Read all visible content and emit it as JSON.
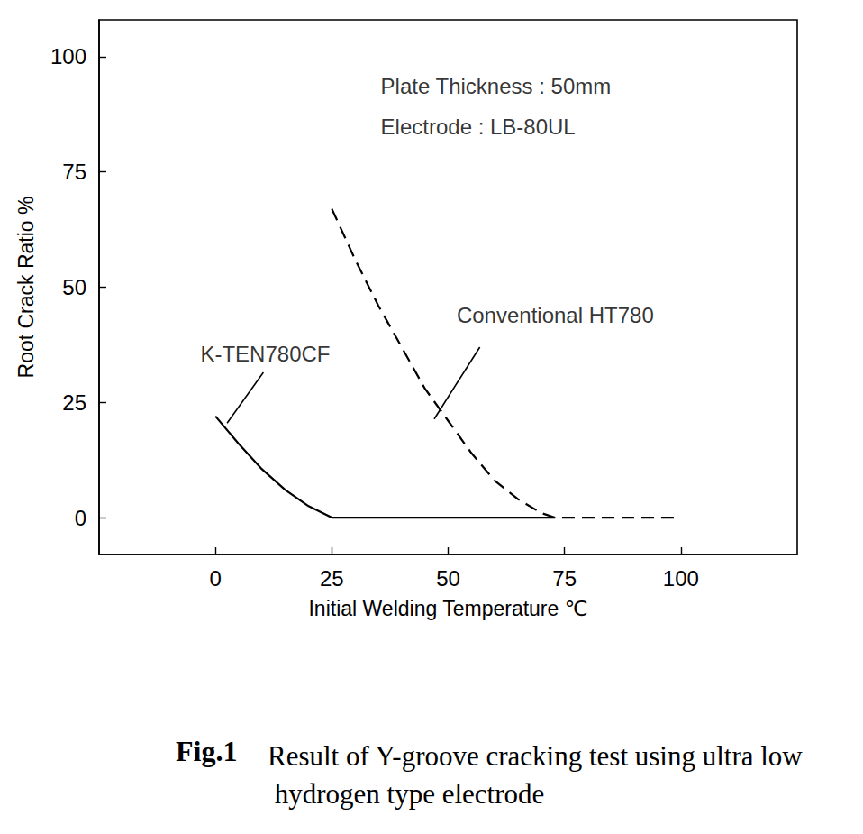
{
  "chart_data": {
    "type": "line",
    "title": "Fig.1",
    "subtitle": "Result of Y-groove cracking test using ultra low hydrogen type electrode",
    "x_label": "Initial Welding Temperature ℃",
    "y_label": "Root Crack Ratio %",
    "xlim": [
      -25,
      125
    ],
    "ylim": [
      -8,
      108
    ],
    "xticks": [
      0,
      25,
      50,
      75,
      100
    ],
    "yticks": [
      0,
      25,
      50,
      75,
      100
    ],
    "grid": false,
    "series": [
      {
        "name": "K-TEN780CF",
        "color": "#000000",
        "line_style": "solid",
        "x": [
          0,
          5,
          10,
          15,
          20,
          25,
          50,
          73
        ],
        "values": [
          22,
          16,
          10.5,
          6,
          2.5,
          0,
          0,
          0
        ],
        "label_at": [
          10.7,
          35.5
        ],
        "leader": [
          [
            10.3,
            31.5
          ],
          [
            2.5,
            20.5
          ]
        ]
      },
      {
        "name": "Conventional HT780",
        "color": "#000000",
        "line_style": "dashed",
        "x": [
          25,
          30,
          35,
          40,
          45,
          50,
          55,
          60,
          65,
          70,
          73,
          75,
          100
        ],
        "values": [
          67,
          56,
          46,
          37,
          28,
          21,
          14,
          8,
          4,
          1,
          0,
          0,
          0
        ],
        "label_at": [
          73,
          44
        ],
        "leader": [
          [
            56.8,
            37
          ],
          [
            47,
            21.4
          ]
        ]
      }
    ],
    "annotations": [
      {
        "text": "Plate Thickness : 50mm",
        "x": 35.5,
        "y": 93.6
      },
      {
        "text": "Electrode : LB-80UL",
        "x": 35.5,
        "y": 84.8
      }
    ]
  }
}
